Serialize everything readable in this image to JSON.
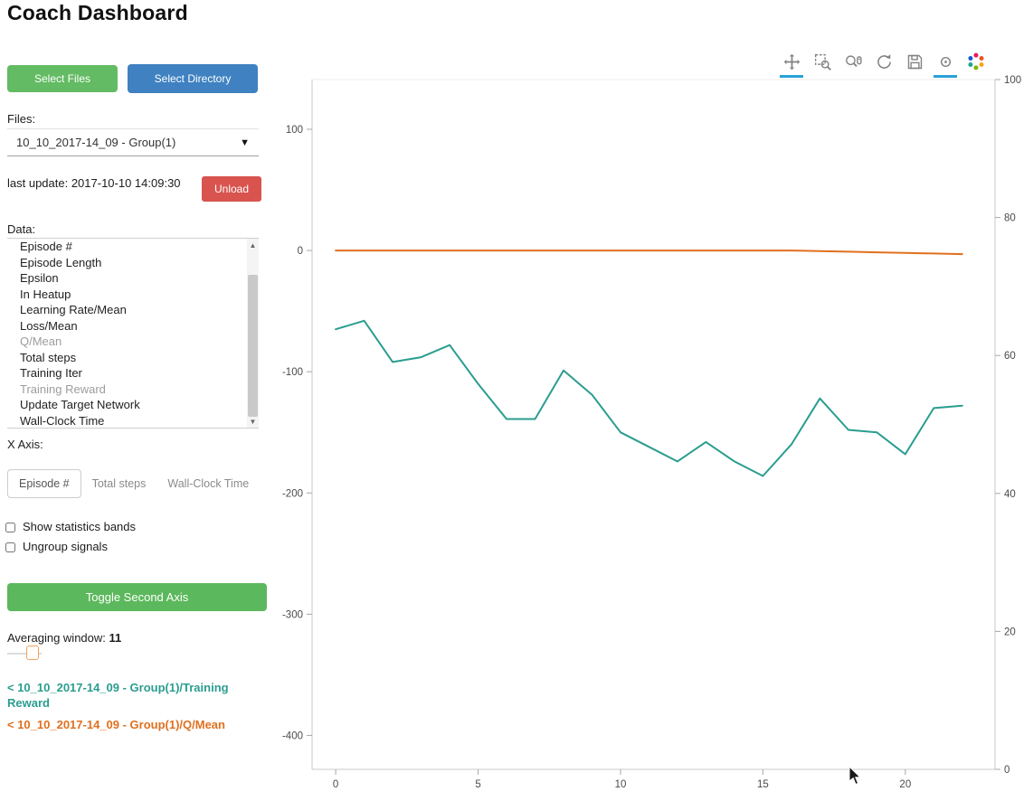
{
  "header": {
    "title": "Coach Dashboard"
  },
  "sidebar": {
    "select_files_label": "Select Files",
    "select_directory_label": "Select Directory",
    "files_label": "Files:",
    "files_selected": "10_10_2017-14_09 - Group(1)",
    "last_update": "last update: 2017-10-10 14:09:30",
    "unload_label": "Unload",
    "data_label": "Data:",
    "data_items": [
      {
        "label": "Episode #",
        "selected": false
      },
      {
        "label": "Episode Length",
        "selected": false
      },
      {
        "label": "Epsilon",
        "selected": false
      },
      {
        "label": "In Heatup",
        "selected": false
      },
      {
        "label": "Learning Rate/Mean",
        "selected": false
      },
      {
        "label": "Loss/Mean",
        "selected": false
      },
      {
        "label": "Q/Mean",
        "selected": true
      },
      {
        "label": "Total steps",
        "selected": false
      },
      {
        "label": "Training Iter",
        "selected": false
      },
      {
        "label": "Training Reward",
        "selected": true
      },
      {
        "label": "Update Target Network",
        "selected": false
      },
      {
        "label": "Wall-Clock Time",
        "selected": false
      }
    ],
    "x_axis_label": "X Axis:",
    "x_axis_options": [
      {
        "label": "Episode #",
        "active": true
      },
      {
        "label": "Total steps",
        "active": false
      },
      {
        "label": "Wall-Clock Time",
        "active": false
      }
    ],
    "checkboxes": [
      {
        "label": "Show statistics bands",
        "checked": false
      },
      {
        "label": "Ungroup signals",
        "checked": false
      }
    ],
    "toggle_second_axis_label": "Toggle Second Axis",
    "averaging_window_label": "Averaging window:",
    "averaging_window_value": "11",
    "legend": [
      {
        "label": "< 10_10_2017-14_09 - Group(1)/Training Reward",
        "color": "#2a9d8f"
      },
      {
        "label": "< 10_10_2017-14_09 - Group(1)/Q/Mean",
        "color": "#e0701e"
      }
    ]
  },
  "plot_toolbar": {
    "active_color": "#2aa2d8",
    "tools": [
      {
        "name": "pan",
        "active": true
      },
      {
        "name": "box-zoom",
        "active": false
      },
      {
        "name": "wheel-zoom",
        "active": false
      },
      {
        "name": "reset",
        "active": false
      },
      {
        "name": "save",
        "active": false
      },
      {
        "name": "hover",
        "active": true
      }
    ],
    "logo": "bokeh-logo"
  },
  "chart_data": {
    "type": "line",
    "title": "",
    "xlabel": "",
    "ylabel": "",
    "grid": false,
    "legend_position": "sidebar",
    "x": [
      0,
      1,
      2,
      3,
      4,
      5,
      6,
      7,
      8,
      9,
      10,
      11,
      12,
      13,
      14,
      15,
      16,
      17,
      18,
      19,
      20,
      21,
      22
    ],
    "series": [
      {
        "name": "10_10_2017-14_09 - Group(1)/Training Reward",
        "color": "#2a9d8f",
        "axis": "left",
        "values": [
          -65,
          -58,
          -92,
          -88,
          -78,
          -110,
          -139,
          -139,
          -99,
          -119,
          -150,
          -162,
          -174,
          -158,
          -174,
          -186,
          -160,
          -122,
          -148,
          -150,
          -168,
          -130,
          -128
        ]
      },
      {
        "name": "10_10_2017-14_09 - Group(1)/Q/Mean",
        "color": "#e0701e",
        "axis": "left",
        "values": [
          0,
          0,
          0,
          0,
          0,
          0,
          0,
          0,
          0,
          0,
          0,
          0,
          0,
          0,
          0,
          0,
          0,
          -0.5,
          -1,
          -1.5,
          -2,
          -2.5,
          -3
        ]
      }
    ],
    "left_axis": {
      "ticks": [
        100,
        0,
        -100,
        -200,
        -300,
        -400
      ],
      "range": [
        -428,
        141
      ]
    },
    "right_axis": {
      "ticks": [
        100,
        80,
        60,
        40,
        20,
        0
      ],
      "range": [
        0,
        100
      ]
    },
    "x_axis": {
      "ticks": [
        0,
        5,
        10,
        15,
        20
      ],
      "range": [
        -0.83,
        23.15
      ]
    }
  }
}
